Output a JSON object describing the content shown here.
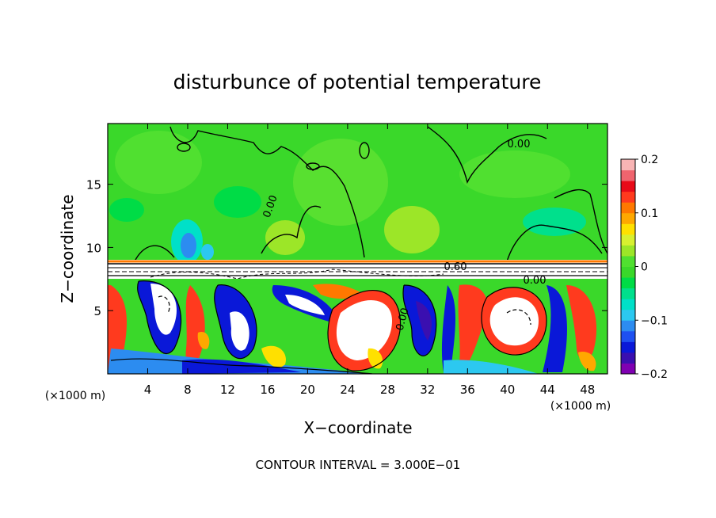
{
  "chart_data": {
    "type": "heatmap",
    "title": "disturbunce of potential temperature",
    "xlabel": "X−coordinate",
    "ylabel": "Z−coordinate",
    "x_unit": "(×1000 m)",
    "y_unit": "(×1000 m)",
    "xlim": [
      0,
      50
    ],
    "ylim": [
      0,
      19.8
    ],
    "x_ticks": [
      "4",
      "8",
      "12",
      "16",
      "20",
      "24",
      "28",
      "32",
      "36",
      "40",
      "44",
      "48"
    ],
    "x_tick_values": [
      4,
      8,
      12,
      16,
      20,
      24,
      28,
      32,
      36,
      40,
      44,
      48
    ],
    "y_ticks": [
      "5",
      "10",
      "15"
    ],
    "y_tick_values": [
      5,
      10,
      15
    ],
    "footer": "CONTOUR INTERVAL = 3.000E−01",
    "contour_labels": [
      {
        "text": "0.00",
        "x": 46.5,
        "y": 18.2
      },
      {
        "text": "0.00",
        "x": 16.0,
        "y": 12.5
      },
      {
        "text": "0.60",
        "x": 34.5,
        "y": 8.6
      },
      {
        "text": "0.00",
        "x": 42.5,
        "y": 7.6
      },
      {
        "text": "0.00",
        "x": 30.0,
        "y": 4.5
      }
    ],
    "colorbar": {
      "min": -0.2,
      "max": 0.2,
      "tick_labels": [
        "0.2",
        "0.1",
        "0",
        "−0.1",
        "−0.2"
      ],
      "tick_values": [
        0.2,
        0.1,
        0,
        -0.1,
        -0.2
      ],
      "colors": [
        "#7f00b2",
        "#3a0fb0",
        "#0a18d8",
        "#1e50f0",
        "#2c8cf0",
        "#2cc8f0",
        "#00e0c8",
        "#00e08c",
        "#00dc46",
        "#3ad82a",
        "#50e030",
        "#9ce628",
        "#d8f030",
        "#ffe000",
        "#ffa800",
        "#ff7800",
        "#ff3a1e",
        "#e80a18",
        "#f0646e",
        "#f8b4b4"
      ]
    },
    "background_value": 0.0
  }
}
